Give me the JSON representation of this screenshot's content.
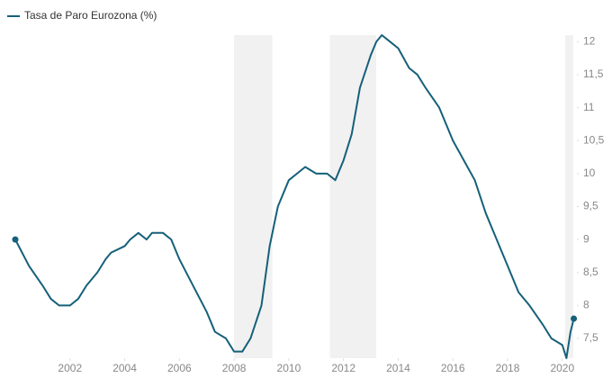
{
  "chart_data": {
    "type": "line",
    "series": [
      {
        "name": "Tasa de Paro Eurozona (%)",
        "color": "#15607a",
        "x": [
          2000.0,
          2000.5,
          2001.0,
          2001.3,
          2001.6,
          2002.0,
          2002.3,
          2002.6,
          2003.0,
          2003.3,
          2003.5,
          2004.0,
          2004.2,
          2004.5,
          2004.8,
          2005.0,
          2005.4,
          2005.7,
          2006.0,
          2006.5,
          2007.0,
          2007.3,
          2007.7,
          2008.0,
          2008.3,
          2008.6,
          2009.0,
          2009.3,
          2009.6,
          2010.0,
          2010.3,
          2010.6,
          2011.0,
          2011.4,
          2011.7,
          2012.0,
          2012.3,
          2012.6,
          2013.0,
          2013.2,
          2013.4,
          2013.7,
          2014.0,
          2014.4,
          2014.7,
          2015.0,
          2015.5,
          2016.0,
          2016.4,
          2016.8,
          2017.2,
          2017.6,
          2018.0,
          2018.4,
          2018.8,
          2019.3,
          2019.6,
          2020.0,
          2020.15,
          2020.3,
          2020.42
        ],
        "values": [
          9.0,
          8.6,
          8.3,
          8.1,
          8.0,
          8.0,
          8.1,
          8.3,
          8.5,
          8.7,
          8.8,
          8.9,
          9.0,
          9.1,
          9.0,
          9.1,
          9.1,
          9.0,
          8.7,
          8.3,
          7.9,
          7.6,
          7.5,
          7.3,
          7.3,
          7.5,
          8.0,
          8.9,
          9.5,
          9.9,
          10.0,
          10.1,
          10.0,
          10.0,
          9.9,
          10.2,
          10.6,
          11.3,
          11.8,
          12.0,
          12.1,
          12.0,
          11.9,
          11.6,
          11.5,
          11.3,
          11.0,
          10.5,
          10.2,
          9.9,
          9.4,
          9.0,
          8.6,
          8.2,
          8.0,
          7.7,
          7.5,
          7.4,
          7.2,
          7.6,
          7.8
        ]
      }
    ],
    "shaded_ranges": [
      [
        2008.0,
        2009.4
      ],
      [
        2011.5,
        2013.2
      ],
      [
        2020.1,
        2020.4
      ]
    ],
    "shade_color": "#f1f1f1",
    "xlim": [
      2000,
      2020.5
    ],
    "xticks": [
      2002,
      2004,
      2006,
      2008,
      2010,
      2012,
      2014,
      2016,
      2018,
      2020
    ],
    "ylim": [
      7.2,
      12.1
    ],
    "yticks": [
      {
        "value": 12,
        "label": "12"
      },
      {
        "value": 11.5,
        "label": "11,5"
      },
      {
        "value": 11,
        "label": "11"
      },
      {
        "value": 10.5,
        "label": "10,5"
      },
      {
        "value": 10,
        "label": "10"
      },
      {
        "value": 9.5,
        "label": "9,5"
      },
      {
        "value": 9,
        "label": "9"
      },
      {
        "value": 8.5,
        "label": "8,5"
      },
      {
        "value": 8,
        "label": "8"
      },
      {
        "value": 7.5,
        "label": "7,5"
      }
    ],
    "y_axis_side": "right",
    "legend": "top-left"
  }
}
